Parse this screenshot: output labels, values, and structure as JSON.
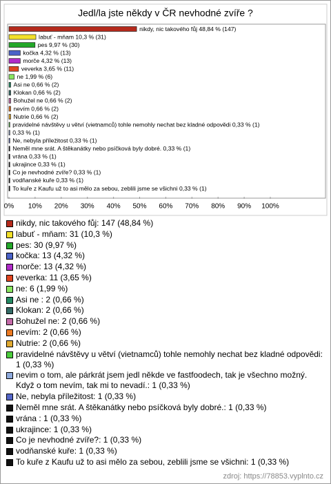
{
  "chart_data": {
    "type": "bar",
    "orientation": "horizontal",
    "title": "Jedl/la jste někdy v ČR nevhodné zvíře ?",
    "categories": [
      "nikdy, nic takového fůj 48,84 % (147)",
      "labuť - mňam 10,3 % (31)",
      "pes 9,97 % (30)",
      "kočka 4,32 % (13)",
      "morče 4,32 % (13)",
      "veverka 3,65 % (11)",
      "ne 1,99 % (6)",
      "Asi ne  0,66 % (2)",
      "Klokan 0,66 % (2)",
      "Bohužel ne 0,66 % (2)",
      "nevím 0,66 % (2)",
      "Nutrie 0,66 % (2)",
      "pravidelné návštěvy u větví (vietnamců) tohle nemohly nechat bez kladné odpovědi 0,33 % (1)",
      "0,33 % (1)",
      "Ne, nebyla příležitost 0,33 % (1)",
      "Neměl mne srát. A štěkanátky nebo psíčková byly dobré. 0,33 % (1)",
      "vrána  0,33 % (1)",
      "ukrajince 0,33 % (1)",
      "Co je nevhodné zvíře? 0,33 % (1)",
      "vodňanské kuře 0,33 % (1)",
      "To kuře z Kaufu už to asi mělo za sebou, zeblili jsme se všichni 0,33 % (1)"
    ],
    "values": [
      48.84,
      10.3,
      9.97,
      4.32,
      4.32,
      3.65,
      1.99,
      0.66,
      0.66,
      0.66,
      0.66,
      0.66,
      0.33,
      0.33,
      0.33,
      0.33,
      0.33,
      0.33,
      0.33,
      0.33,
      0.33
    ],
    "colors": [
      "#b52a1c",
      "#f2e02a",
      "#23a829",
      "#4a62c8",
      "#b02cc8",
      "#e0451f",
      "#8ae660",
      "#238a63",
      "#336b66",
      "#c46aa8",
      "#ec7a22",
      "#e0a930",
      "#4ccc3c",
      "#8eaadc",
      "#5466c8",
      "#111111",
      "#111111",
      "#111111",
      "#111111",
      "#111111",
      "#111111"
    ],
    "legend_labels": [
      "nikdy, nic takového fůj: 147 (48,84 %)",
      "labuť - mňam: 31 (10,3 %)",
      "pes: 30 (9,97 %)",
      "kočka: 13 (4,32 %)",
      "morče: 13 (4,32 %)",
      "veverka: 11 (3,65 %)",
      "ne: 6 (1,99 %)",
      "Asi ne : 2 (0,66 %)",
      "Klokan: 2 (0,66 %)",
      "Bohužel ne: 2 (0,66 %)",
      "nevím: 2 (0,66 %)",
      "Nutrie: 2 (0,66 %)",
      "pravidelné návštěvy u větví (vietnamců) tohle nemohly nechat bez kladné odpovědi: 1 (0,33 %)",
      "nevim o tom, ale párkrát jsem jedl někde ve fastfoodech, tak je všechno možný. Když o tom nevím, tak mi to nevadí.: 1 (0,33 %)",
      "Ne, nebyla příležitost: 1 (0,33 %)",
      "Neměl mne srát. A štěkanátky nebo psíčková byly dobré.: 1 (0,33 %)",
      "vrána : 1 (0,33 %)",
      "ukrajince: 1 (0,33 %)",
      "Co je nevhodné zvíře?: 1 (0,33 %)",
      "vodňanské kuře: 1 (0,33 %)",
      "To kuře z Kaufu už to asi mělo za sebou, zeblili jsme se všichni: 1 (0,33 %)"
    ],
    "xlim": [
      0,
      100
    ],
    "xticks": [
      {
        "value": 0,
        "label": "0%"
      },
      {
        "value": 10,
        "label": "10%"
      },
      {
        "value": 20,
        "label": "20%"
      },
      {
        "value": 30,
        "label": "30%"
      },
      {
        "value": 40,
        "label": "40%"
      },
      {
        "value": 50,
        "label": "50%"
      },
      {
        "value": 60,
        "label": "60%"
      },
      {
        "value": 70,
        "label": "70%"
      },
      {
        "value": 80,
        "label": "80%"
      },
      {
        "value": 90,
        "label": "90%"
      },
      {
        "value": 100,
        "label": "100%"
      }
    ],
    "grid": false,
    "source": "zdroj: https://78853.vyplnto.cz"
  }
}
